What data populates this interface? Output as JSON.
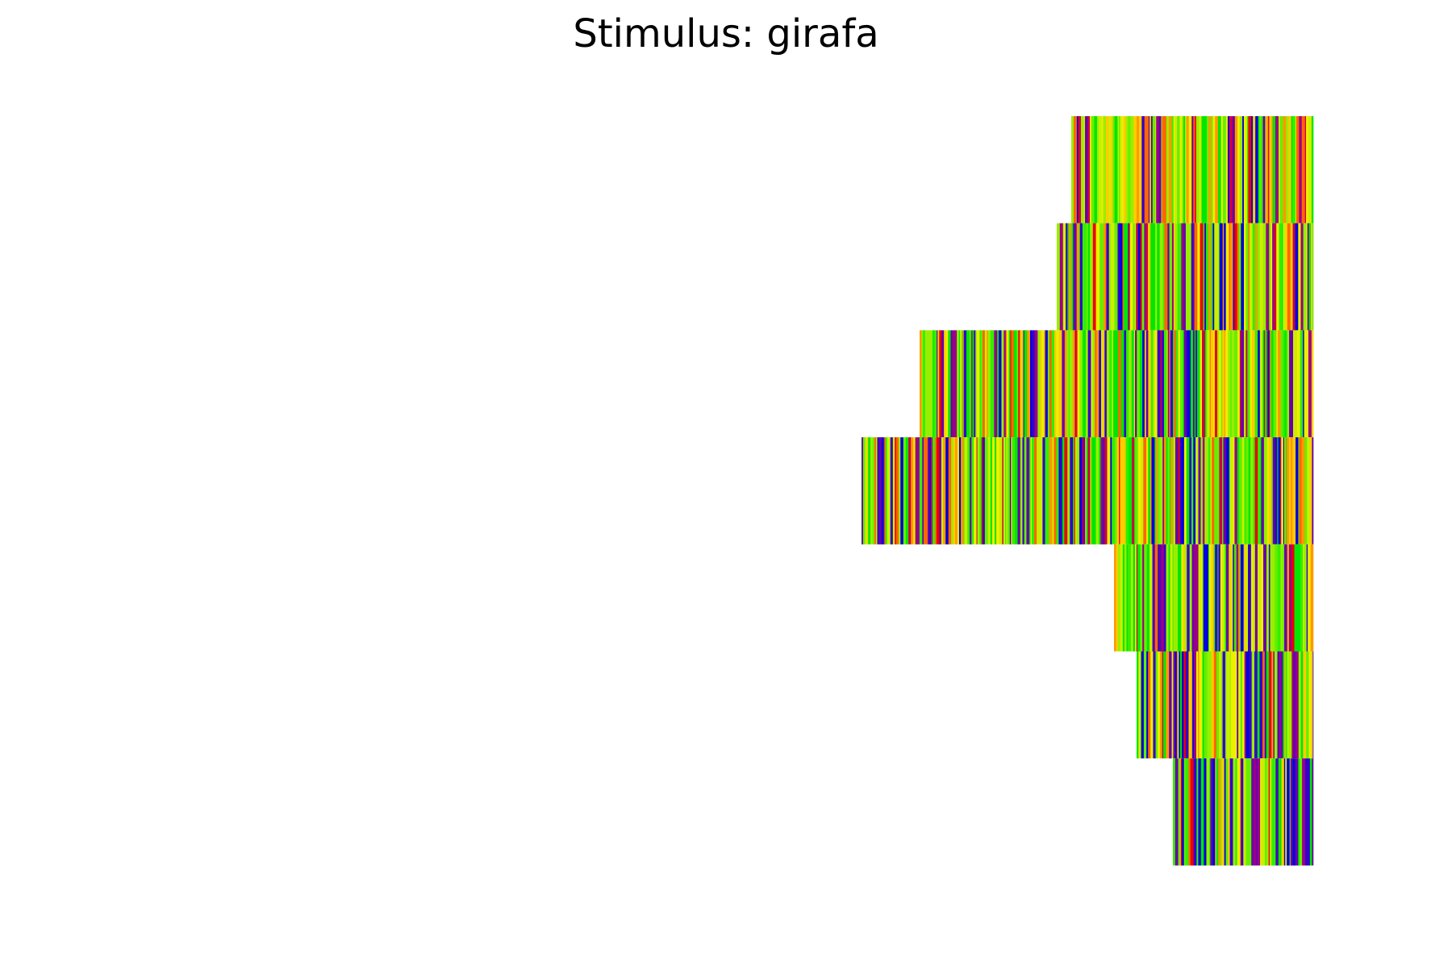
{
  "chart_data": {
    "type": "heatmap",
    "title": "Stimulus: girafa",
    "xlabel": "",
    "ylabel": "",
    "axes_visible": false,
    "grid": false,
    "legend": "none",
    "alignment": "right-aligned rows",
    "rows": [
      {
        "length": 300
      },
      {
        "length": 318
      },
      {
        "length": 488
      },
      {
        "length": 560
      },
      {
        "length": 247
      },
      {
        "length": 219
      },
      {
        "length": 174
      }
    ],
    "palette": [
      "#00e600",
      "#33ee00",
      "#66ee00",
      "#99ee00",
      "#ccee00",
      "#eeee00",
      "#ffcc00",
      "#ff9900",
      "#ff6600",
      "#ee0000",
      "#cc0044",
      "#990088",
      "#6600aa",
      "#3300cc",
      "#0000dd"
    ]
  }
}
